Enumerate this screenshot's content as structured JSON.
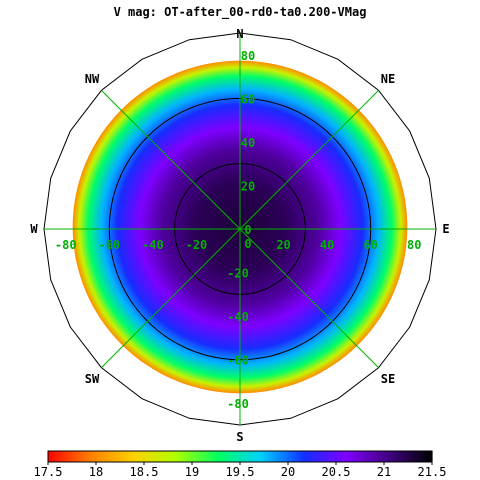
{
  "chart_data": {
    "type": "heatmap",
    "projection": "polar",
    "title": "V mag: OT-after_00-rd0-ta0.200-VMag",
    "directions": [
      "N",
      "NE",
      "E",
      "SE",
      "S",
      "SW",
      "W",
      "NW"
    ],
    "x_ticks": [
      "-80",
      "-60",
      "-40",
      "-20",
      "0",
      "20",
      "40",
      "60",
      "80"
    ],
    "y_ticks_up": [
      "80",
      "60",
      "40",
      "20",
      "0"
    ],
    "y_ticks_down": [
      "-20",
      "-40",
      "-60",
      "-80"
    ],
    "axis_range": [
      -90,
      90
    ],
    "contour_levels": [
      30,
      60,
      90
    ],
    "colorbar": {
      "min": 17.5,
      "max": 21.5,
      "tick_labels": [
        "17.5",
        "18",
        "18.5",
        "19",
        "19.5",
        "20",
        "20.5",
        "21",
        "21.5"
      ],
      "colors": [
        "#ff0000",
        "#ff8000",
        "#ffd000",
        "#b0ff00",
        "#00ff60",
        "#00d0ff",
        "#1030ff",
        "#8000ff",
        "#400080",
        "#000000"
      ]
    },
    "data_extent_deg": 75,
    "radial_profile": [
      {
        "r": 0,
        "value": 21.3
      },
      {
        "r": 20,
        "value": 21.2
      },
      {
        "r": 35,
        "value": 20.95
      },
      {
        "r": 45,
        "value": 20.6
      },
      {
        "r": 55,
        "value": 20.2
      },
      {
        "r": 62,
        "value": 19.8
      },
      {
        "r": 68,
        "value": 19.3
      },
      {
        "r": 72,
        "value": 18.7
      },
      {
        "r": 75,
        "value": 18.0
      }
    ],
    "colors": {
      "grid": "#00b000",
      "tick_labels": "#00b000",
      "contours": "#000000",
      "direction_labels": "#000000"
    }
  }
}
